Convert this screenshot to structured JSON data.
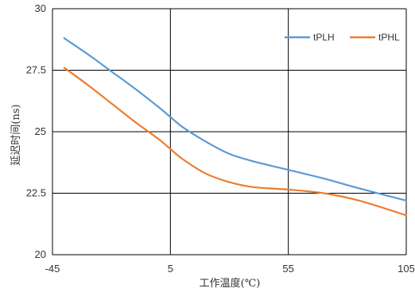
{
  "chart_data": {
    "type": "line",
    "title": "",
    "xlabel": "工作温度(℃)",
    "ylabel": "延迟时间(ns)",
    "xlim": [
      -45,
      105
    ],
    "ylim": [
      20,
      30
    ],
    "xticks": [
      -45,
      5,
      55,
      105
    ],
    "xtick_labels": [
      "-45",
      "5",
      "55",
      "105"
    ],
    "yticks": [
      20,
      22.5,
      25,
      27.5,
      30
    ],
    "ytick_labels": [
      "20",
      "22.5",
      "25",
      "27.5",
      "30"
    ],
    "grid": true,
    "legend_position": "top-right",
    "series": [
      {
        "name": "tPLH",
        "color": "#5B9BD5",
        "x": [
          -40,
          -30,
          -20,
          -10,
          0,
          5,
          10,
          20,
          30,
          40,
          55,
          70,
          85,
          105
        ],
        "y": [
          28.8,
          28.15,
          27.45,
          26.75,
          26.0,
          25.6,
          25.2,
          24.6,
          24.1,
          23.8,
          23.45,
          23.1,
          22.7,
          22.2
        ]
      },
      {
        "name": "tPHL",
        "color": "#ED7D31",
        "x": [
          -40,
          -30,
          -20,
          -10,
          0,
          5,
          10,
          20,
          30,
          40,
          55,
          70,
          85,
          105
        ],
        "y": [
          27.6,
          26.9,
          26.15,
          25.4,
          24.7,
          24.3,
          23.9,
          23.3,
          22.95,
          22.75,
          22.65,
          22.5,
          22.2,
          21.6
        ]
      }
    ]
  }
}
